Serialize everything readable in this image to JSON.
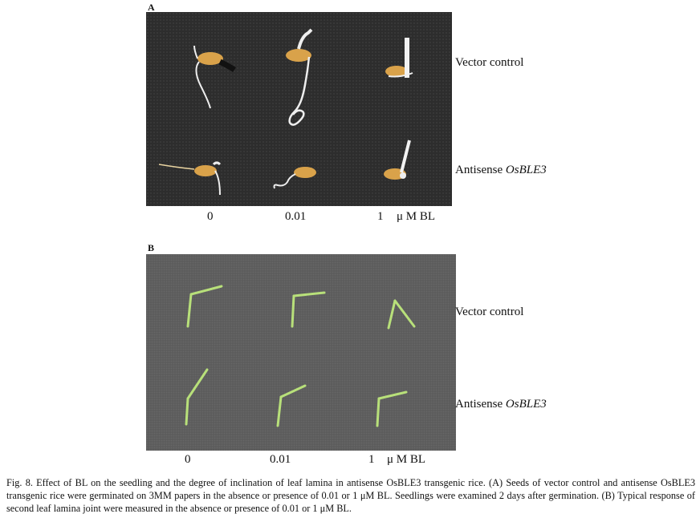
{
  "panel_a": {
    "letter": "A",
    "row_labels": {
      "vector": "Vector control",
      "antisense_prefix": "Antisense ",
      "antisense_gene": "OsBLE3"
    },
    "concentrations": [
      "0",
      "0.01",
      "1"
    ],
    "unit": "μ M BL"
  },
  "panel_b": {
    "letter": "B",
    "row_labels": {
      "vector": "Vector control",
      "antisense_prefix": "Antisense ",
      "antisense_gene": "OsBLE3"
    },
    "concentrations": [
      "0",
      "0.01",
      "1"
    ],
    "unit": "μ M BL"
  },
  "caption": "Fig. 8. Effect of BL on the seedling and the degree of inclination of leaf lamina in antisense OsBLE3 transgenic rice. (A) Seeds of vector control and antisense OsBLE3 transgenic rice were germinated on 3MM papers in the absence or presence of 0.01 or 1 μM BL. Seedlings were examined 2 days after germination. (B) Typical response of second leaf lamina joint were measured in the absence or presence of 0.01 or 1 μM BL.",
  "colors": {
    "photo_a_bg": "#2d2d2d",
    "photo_b_bg": "#5c5c5c",
    "seed": "#d9a24a",
    "leaf": "#b8e07a"
  }
}
